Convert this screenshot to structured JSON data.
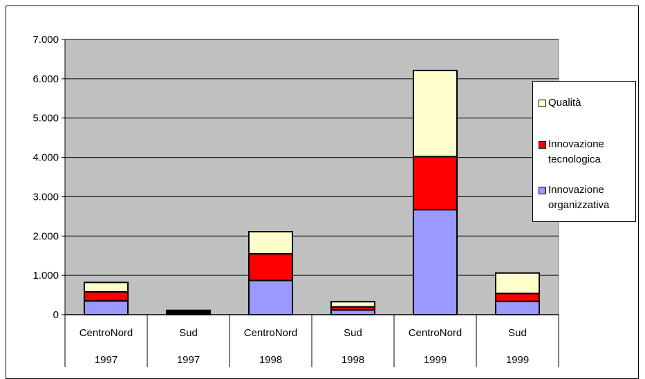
{
  "chart_data": {
    "type": "bar",
    "stacked": true,
    "categories": [
      [
        "CentroNord",
        "1997"
      ],
      [
        "Sud",
        "1997"
      ],
      [
        "CentroNord",
        "1998"
      ],
      [
        "Sud",
        "1998"
      ],
      [
        "CentroNord",
        "1999"
      ],
      [
        "Sud",
        "1999"
      ]
    ],
    "series": [
      {
        "name": "Innovazione organizzativa",
        "color": "#9999ff",
        "values": [
          350,
          0,
          870,
          120,
          2670,
          340
        ]
      },
      {
        "name": "Innovazione tecnologica",
        "color": "#ff0000",
        "values": [
          230,
          0,
          680,
          80,
          1350,
          200
        ]
      },
      {
        "name": "Qualità",
        "color": "#ffffcc",
        "values": [
          240,
          0,
          560,
          130,
          2190,
          520
        ]
      },
      {
        "name": "",
        "color": "#000000",
        "values": [
          0,
          110,
          0,
          0,
          0,
          0
        ]
      }
    ],
    "ylim": [
      0,
      7000
    ],
    "yticks": [
      "0",
      "1.000",
      "2.000",
      "3.000",
      "4.000",
      "5.000",
      "6.000",
      "7.000"
    ],
    "plot_background": "#c0c0c0",
    "grid": true,
    "legend_position": "right",
    "legend_order": [
      "Qualità",
      "Innovazione tecnologica",
      "Innovazione organizzativa"
    ],
    "title": "",
    "xlabel": "",
    "ylabel": ""
  }
}
